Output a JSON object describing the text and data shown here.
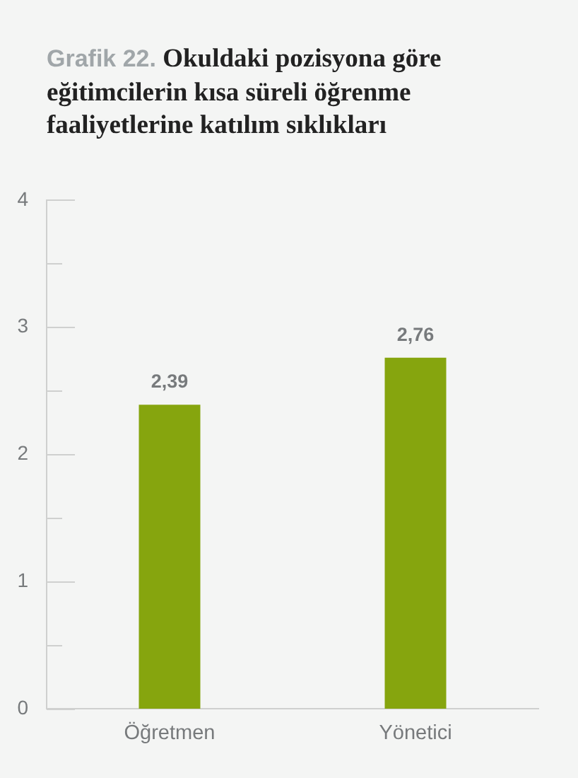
{
  "chart_data": {
    "type": "bar",
    "title": "Grafik 22. Okuldaki pozisyona göre eğitimcilerin kısa süreli öğrenme faaliyetlerine katılım sıklıkları",
    "categories": [
      "Öğretmen",
      "Yönetici"
    ],
    "values": [
      2.39,
      2.76
    ],
    "value_labels": [
      "2,39",
      "2,76"
    ],
    "color": "#86a50e",
    "ylim": [
      0,
      4
    ],
    "yticks": [
      0,
      {
        "value": 0.5,
        "label": null
      },
      1,
      {
        "value": 1.5,
        "label": null
      },
      2,
      {
        "value": 2.5,
        "label": null
      },
      3,
      {
        "value": 3.5,
        "label": null
      },
      4
    ]
  }
}
